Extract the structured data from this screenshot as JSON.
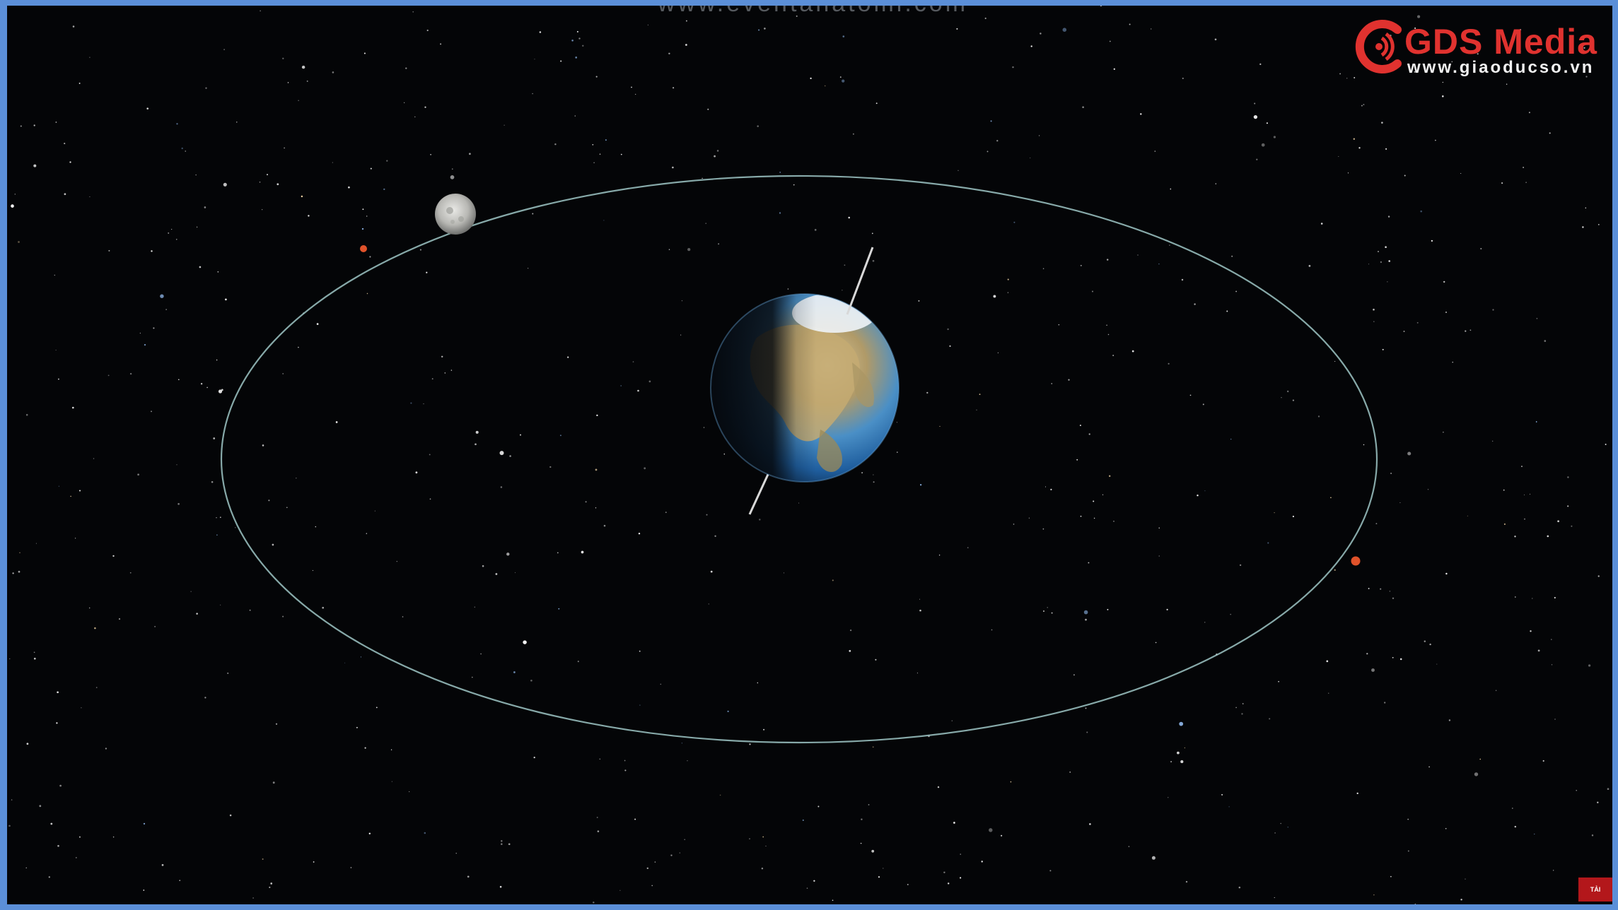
{
  "watermark": {
    "text": "www.eventanatomi.com"
  },
  "logo": {
    "title": "GDS Media",
    "url": "www.giaoducso.vn",
    "brand_color": "#e0322f"
  },
  "corner_badge": {
    "text": "TẢI XUỐNG"
  },
  "colors": {
    "space": "#040507",
    "frame": "#5b8fd8",
    "orbit": "#9fc7c6",
    "marker": "#e0522a",
    "ocean": "#2f7fc8"
  },
  "icons": [
    "gds-media-logo-mark",
    "earth-globe",
    "moon-sphere",
    "orbit-ellipse",
    "orbit-marker-dot"
  ]
}
